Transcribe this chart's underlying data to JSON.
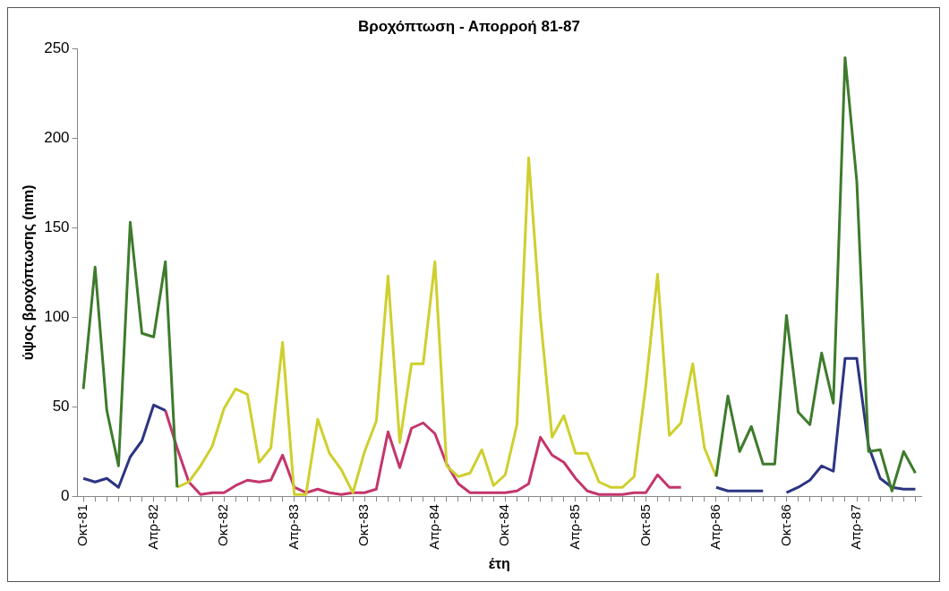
{
  "chart_data": {
    "type": "line",
    "title": "Βροχόπτωση - Απορροή 81-87",
    "xlabel": "έτη",
    "ylabel": "ύψος βροχόπτωσης (mm)",
    "categories": [
      "Οκτ-81",
      null,
      null,
      null,
      null,
      null,
      "Απρ-82",
      null,
      null,
      null,
      null,
      null,
      "Οκτ-82",
      null,
      null,
      null,
      null,
      null,
      "Απρ-83",
      null,
      null,
      null,
      null,
      null,
      "Οκτ-83",
      null,
      null,
      null,
      null,
      null,
      "Απρ-84",
      null,
      null,
      null,
      null,
      null,
      "Οκτ-84",
      null,
      null,
      null,
      null,
      null,
      "Απρ-85",
      null,
      null,
      null,
      null,
      null,
      "Οκτ-85",
      null,
      null,
      null,
      null,
      null,
      "Απρ-86",
      null,
      null,
      null,
      null,
      null,
      "Οκτ-86",
      null,
      null,
      null,
      null,
      null,
      "Απρ-87",
      null,
      null,
      null,
      null,
      null
    ],
    "series": [
      {
        "color": "#3e7b2c",
        "values": [
          60,
          128,
          48,
          17,
          153,
          91,
          89,
          131,
          5,
          null,
          null,
          null,
          null,
          null,
          null,
          null,
          null,
          null,
          null,
          null,
          null,
          null,
          null,
          null,
          null,
          null,
          null,
          null,
          null,
          null,
          null,
          null,
          null,
          null,
          null,
          null,
          null,
          null,
          null,
          null,
          null,
          null,
          null,
          null,
          null,
          null,
          null,
          null,
          null,
          null,
          null,
          null,
          null,
          null,
          11,
          56,
          25,
          39,
          18,
          18,
          101,
          47,
          40,
          80,
          52,
          245,
          176,
          25,
          26,
          3,
          25,
          13
        ]
      },
      {
        "color": "#cfcf2e",
        "values": [
          null,
          null,
          null,
          null,
          null,
          null,
          null,
          null,
          5,
          8,
          17,
          28,
          49,
          60,
          57,
          19,
          27,
          86,
          1,
          1,
          43,
          24,
          15,
          2,
          25,
          42,
          123,
          30,
          74,
          74,
          131,
          17,
          11,
          13,
          26,
          6,
          12,
          40,
          189,
          100,
          33,
          45,
          24,
          24,
          8,
          5,
          5,
          11,
          62,
          124,
          34,
          41,
          74,
          27,
          11,
          null,
          null,
          null,
          null,
          null,
          null,
          null,
          null,
          null,
          null,
          null,
          null,
          null,
          null,
          null,
          null,
          null
        ]
      },
      {
        "color": "#2c3580",
        "values": [
          10,
          8,
          10,
          5,
          22,
          31,
          51,
          48,
          null,
          null,
          null,
          null,
          null,
          null,
          null,
          null,
          null,
          null,
          null,
          null,
          null,
          null,
          null,
          null,
          null,
          null,
          null,
          null,
          null,
          null,
          null,
          null,
          null,
          null,
          null,
          null,
          null,
          null,
          null,
          null,
          null,
          null,
          null,
          null,
          null,
          null,
          null,
          null,
          null,
          null,
          null,
          null,
          null,
          null,
          5,
          3,
          3,
          3,
          3,
          null,
          2,
          5,
          9,
          17,
          14,
          77,
          77,
          28,
          10,
          5,
          4,
          4
        ]
      },
      {
        "color": "#c4356c",
        "values": [
          null,
          null,
          null,
          null,
          null,
          null,
          null,
          48,
          27,
          8,
          1,
          2,
          2,
          6,
          9,
          8,
          9,
          23,
          5,
          2,
          4,
          2,
          1,
          2,
          2,
          4,
          36,
          16,
          38,
          41,
          35,
          18,
          7,
          2,
          2,
          2,
          2,
          3,
          7,
          33,
          23,
          19,
          10,
          3,
          1,
          1,
          1,
          2,
          2,
          12,
          5,
          5,
          null,
          null,
          null,
          null,
          null,
          null,
          null,
          null,
          null,
          null,
          null,
          null,
          null,
          null,
          null,
          null,
          null,
          null,
          null,
          null
        ]
      }
    ],
    "ylim": [
      0,
      250
    ],
    "yticks": [
      0,
      50,
      100,
      150,
      200,
      250
    ],
    "grid": false,
    "legend": false,
    "marker": "none"
  }
}
